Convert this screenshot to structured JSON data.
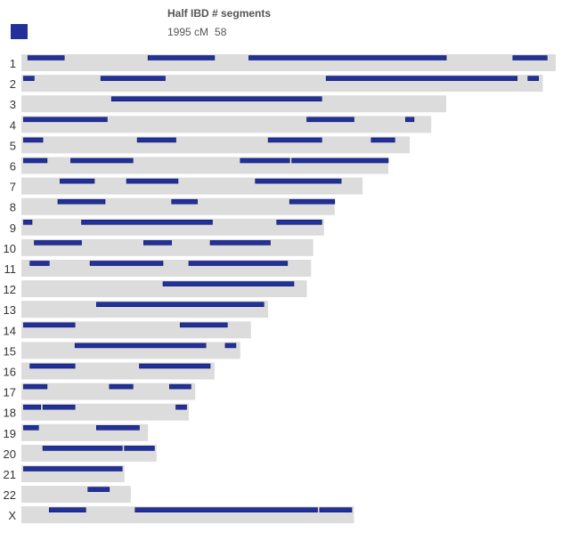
{
  "legend": {
    "title": "Half IBD # segments",
    "total_cm": "1995 cM",
    "segment_count": "58"
  },
  "colors": {
    "segment": "#22319a",
    "chromosome_bar": "#dcdcdc"
  },
  "chart_data": {
    "type": "bar",
    "series": [
      {
        "name": "Half IBD",
        "color": "#22319a"
      }
    ],
    "units": "Mb",
    "chromosomes": [
      {
        "label": "1",
        "length": 249,
        "segments": [
          [
            3,
            20
          ],
          [
            59,
            90
          ],
          [
            106,
            198
          ],
          [
            229,
            245
          ]
        ]
      },
      {
        "label": "2",
        "length": 243,
        "segments": [
          [
            1,
            6
          ],
          [
            37,
            67
          ],
          [
            142,
            231
          ],
          [
            236,
            241
          ]
        ]
      },
      {
        "label": "3",
        "length": 198,
        "segments": [
          [
            42,
            140
          ]
        ]
      },
      {
        "label": "4",
        "length": 191,
        "segments": [
          [
            1,
            40
          ],
          [
            133,
            155
          ],
          [
            179,
            183
          ]
        ]
      },
      {
        "label": "5",
        "length": 181,
        "segments": [
          [
            1,
            10
          ],
          [
            54,
            72
          ],
          [
            115,
            140
          ],
          [
            163,
            174
          ]
        ]
      },
      {
        "label": "6",
        "length": 171,
        "segments": [
          [
            1,
            12
          ],
          [
            23,
            52
          ],
          [
            102,
            125
          ],
          [
            126,
            171
          ]
        ]
      },
      {
        "label": "7",
        "length": 159,
        "segments": [
          [
            18,
            34
          ],
          [
            49,
            73
          ],
          [
            109,
            149
          ]
        ]
      },
      {
        "label": "8",
        "length": 146,
        "segments": [
          [
            17,
            39
          ],
          [
            70,
            82
          ],
          [
            125,
            146
          ]
        ]
      },
      {
        "label": "9",
        "length": 141,
        "segments": [
          [
            1,
            5
          ],
          [
            28,
            89
          ],
          [
            119,
            140
          ]
        ]
      },
      {
        "label": "10",
        "length": 136,
        "segments": [
          [
            6,
            28
          ],
          [
            57,
            70
          ],
          [
            88,
            116
          ]
        ]
      },
      {
        "label": "11",
        "length": 135,
        "segments": [
          [
            4,
            13
          ],
          [
            32,
            66
          ],
          [
            78,
            124
          ]
        ]
      },
      {
        "label": "12",
        "length": 133,
        "segments": [
          [
            66,
            127
          ]
        ]
      },
      {
        "label": "13",
        "length": 115,
        "segments": [
          [
            35,
            113
          ]
        ]
      },
      {
        "label": "14",
        "length": 107,
        "segments": [
          [
            1,
            25
          ],
          [
            74,
            96
          ]
        ]
      },
      {
        "label": "15",
        "length": 102,
        "segments": [
          [
            25,
            86
          ],
          [
            95,
            100
          ]
        ]
      },
      {
        "label": "16",
        "length": 90,
        "segments": [
          [
            4,
            25
          ],
          [
            55,
            88
          ]
        ]
      },
      {
        "label": "17",
        "length": 81,
        "segments": [
          [
            1,
            12
          ],
          [
            41,
            52
          ],
          [
            69,
            79
          ]
        ]
      },
      {
        "label": "18",
        "length": 78,
        "segments": [
          [
            1,
            9
          ],
          [
            10,
            25
          ],
          [
            72,
            77
          ]
        ]
      },
      {
        "label": "19",
        "length": 59,
        "segments": [
          [
            1,
            8
          ],
          [
            35,
            55
          ]
        ]
      },
      {
        "label": "20",
        "length": 63,
        "segments": [
          [
            10,
            47
          ],
          [
            48,
            62
          ]
        ]
      },
      {
        "label": "21",
        "length": 48,
        "segments": [
          [
            1,
            47
          ]
        ]
      },
      {
        "label": "22",
        "length": 51,
        "segments": [
          [
            31,
            41
          ]
        ]
      },
      {
        "label": "X",
        "length": 155,
        "segments": [
          [
            13,
            30
          ],
          [
            53,
            138
          ],
          [
            139,
            154
          ]
        ]
      }
    ]
  }
}
